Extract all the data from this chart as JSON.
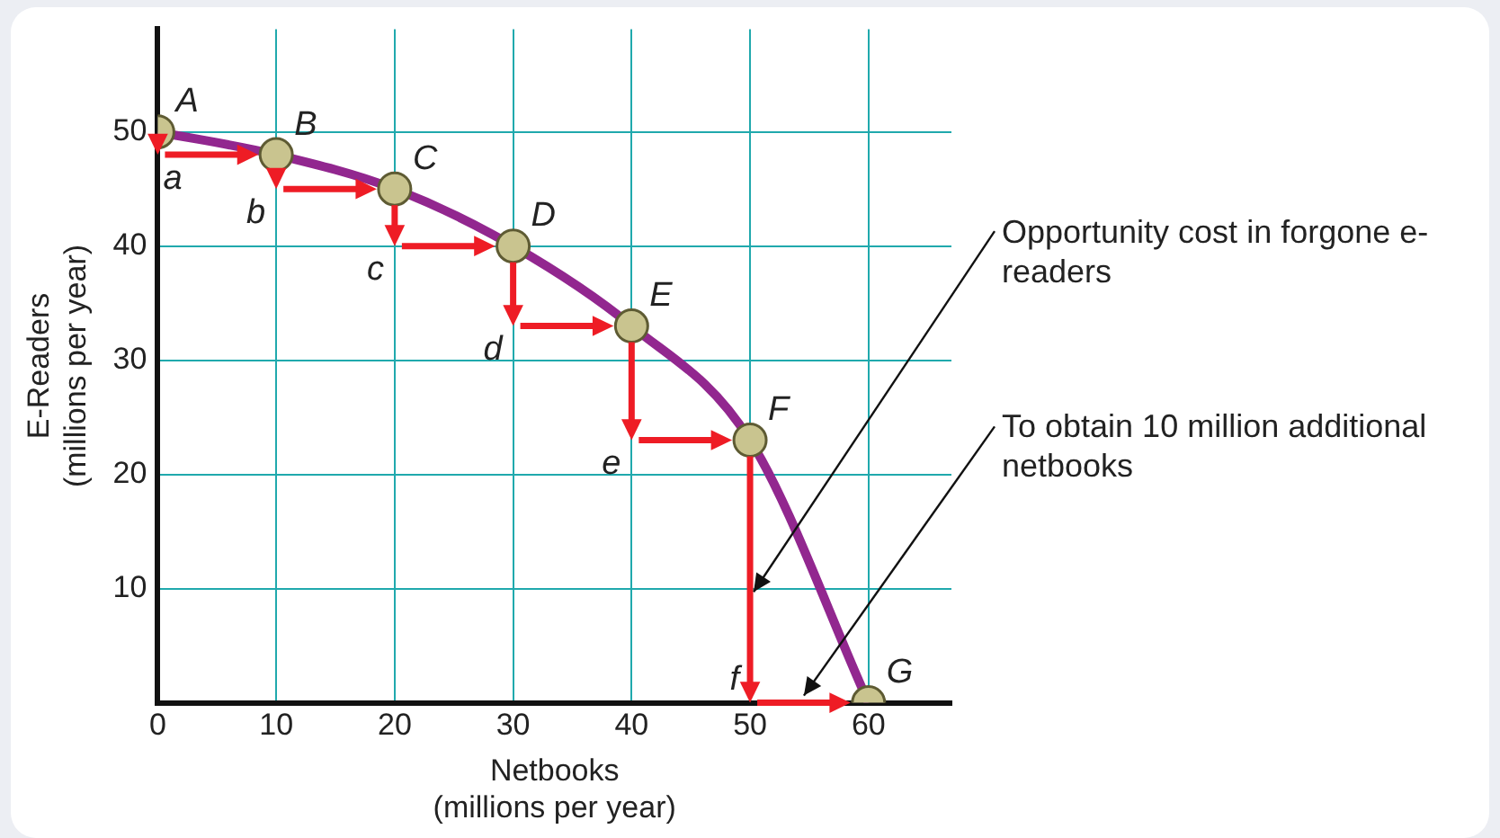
{
  "chart_data": {
    "type": "line",
    "xlabel": "Netbooks\n(millions per year)",
    "ylabel": "E-Readers\n(millions per year)",
    "x": [
      0,
      10,
      20,
      30,
      40,
      50,
      60
    ],
    "series": [
      {
        "color": "#92278f",
        "values": [
          50,
          48,
          45,
          40,
          33,
          23,
          0
        ]
      }
    ],
    "xlim": [
      0,
      67
    ],
    "ylim": [
      0,
      59
    ],
    "xticks": [
      0,
      10,
      20,
      30,
      40,
      50,
      60
    ],
    "yticks": [
      10,
      20,
      30,
      40,
      50
    ],
    "grid": true,
    "marker": "circle",
    "line_style": "solid",
    "annotations": [
      {
        "text": "A",
        "x": 0,
        "y": 50
      },
      {
        "text": "B",
        "x": 10,
        "y": 48
      },
      {
        "text": "C",
        "x": 20,
        "y": 45
      },
      {
        "text": "D",
        "x": 30,
        "y": 40
      },
      {
        "text": "E",
        "x": 40,
        "y": 33
      },
      {
        "text": "F",
        "x": 50,
        "y": 23
      },
      {
        "text": "G",
        "x": 60,
        "y": 0
      },
      {
        "text": "a",
        "x": 10,
        "y": 48
      },
      {
        "text": "b",
        "x": 10,
        "y": 48
      },
      "c",
      "d",
      {
        "text": "e",
        "x": 40,
        "y": 33
      },
      {
        "text": "f",
        "x": 50,
        "y": 23
      },
      "Opportunity cost in forgone e-readers",
      "To obtain 10 million additional netbooks"
    ]
  }
}
